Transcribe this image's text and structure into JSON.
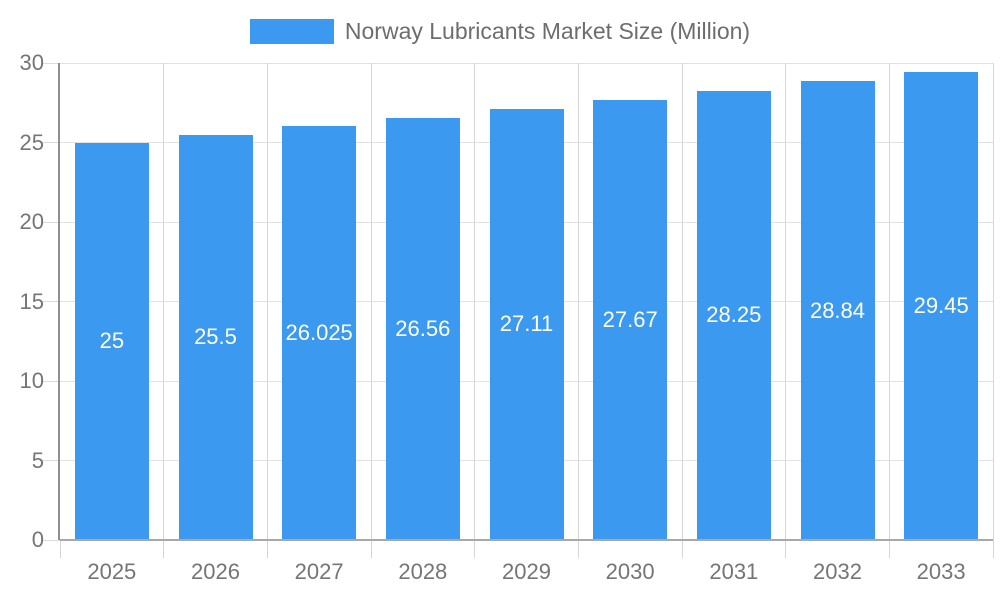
{
  "legend": {
    "label": "Norway Lubricants Market Size (Million)"
  },
  "chart_data": {
    "type": "bar",
    "title": "Norway Lubricants Market Size (Million)",
    "categories": [
      "2025",
      "2026",
      "2027",
      "2028",
      "2029",
      "2030",
      "2031",
      "2032",
      "2033"
    ],
    "values": [
      25,
      25.5,
      26.025,
      26.56,
      27.11,
      27.67,
      28.25,
      28.84,
      29.45
    ],
    "value_labels": [
      "25",
      "25.5",
      "26.025",
      "26.56",
      "27.11",
      "27.67",
      "28.25",
      "28.84",
      "29.45"
    ],
    "xlabel": "",
    "ylabel": "",
    "ylim": [
      0,
      30
    ],
    "yticks": [
      0,
      5,
      10,
      15,
      20,
      25,
      30
    ],
    "grid": true,
    "legend_position": "top",
    "bar_label_position": "inside-middle"
  },
  "colors": {
    "bar": "#3b99f0",
    "bar_label": "#ffffff",
    "grid_horizontal": "#e2e2e2",
    "grid_vertical": "#d6d6d6",
    "y_axis": "#8f8f8f",
    "x_axis": "#a8a8a8",
    "tick_text": "#757575",
    "legend_text": "#6d6d6d",
    "background": "#ffffff"
  }
}
